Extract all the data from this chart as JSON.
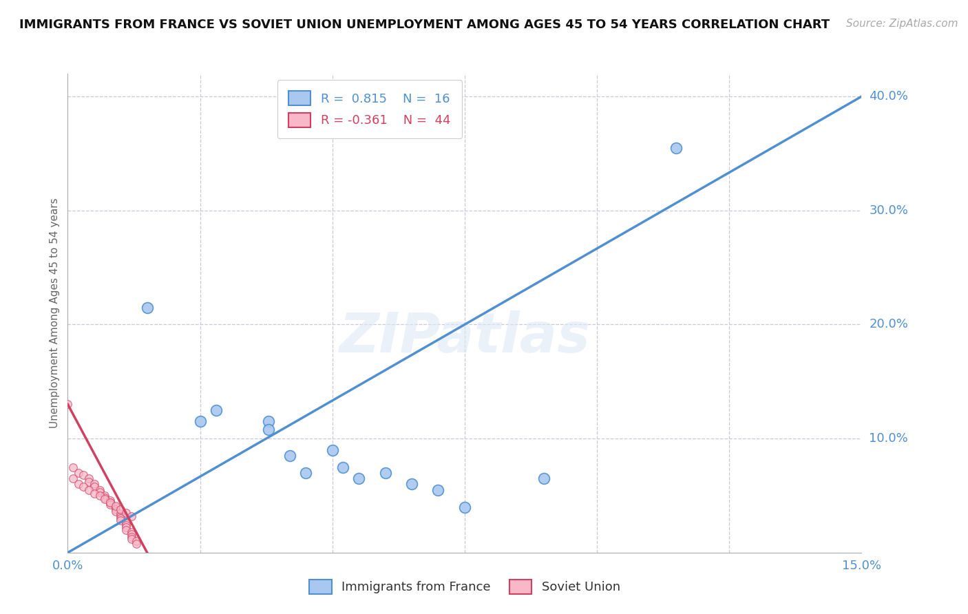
{
  "title": "IMMIGRANTS FROM FRANCE VS SOVIET UNION UNEMPLOYMENT AMONG AGES 45 TO 54 YEARS CORRELATION CHART",
  "source": "Source: ZipAtlas.com",
  "ylabel": "Unemployment Among Ages 45 to 54 years",
  "xlim": [
    0.0,
    0.15
  ],
  "ylim": [
    0.0,
    0.42
  ],
  "france_R": 0.815,
  "france_N": 16,
  "soviet_R": -0.361,
  "soviet_N": 44,
  "france_color": "#a8c8f0",
  "soviet_color": "#f8b8c8",
  "france_line_color": "#5090d0",
  "soviet_line_color": "#d04060",
  "watermark_text": "ZIPatlas",
  "background_color": "#ffffff",
  "grid_color": "#c8c8d8",
  "axis_label_color": "#5090d0",
  "france_points": [
    [
      0.015,
      0.215
    ],
    [
      0.025,
      0.115
    ],
    [
      0.028,
      0.125
    ],
    [
      0.038,
      0.115
    ],
    [
      0.038,
      0.108
    ],
    [
      0.042,
      0.085
    ],
    [
      0.05,
      0.09
    ],
    [
      0.045,
      0.07
    ],
    [
      0.052,
      0.075
    ],
    [
      0.055,
      0.065
    ],
    [
      0.06,
      0.07
    ],
    [
      0.065,
      0.06
    ],
    [
      0.07,
      0.055
    ],
    [
      0.075,
      0.04
    ],
    [
      0.09,
      0.065
    ],
    [
      0.115,
      0.355
    ]
  ],
  "soviet_points": [
    [
      0.0,
      0.13
    ],
    [
      0.001,
      0.075
    ],
    [
      0.002,
      0.07
    ],
    [
      0.003,
      0.068
    ],
    [
      0.004,
      0.065
    ],
    [
      0.004,
      0.062
    ],
    [
      0.005,
      0.06
    ],
    [
      0.005,
      0.058
    ],
    [
      0.006,
      0.055
    ],
    [
      0.006,
      0.053
    ],
    [
      0.007,
      0.05
    ],
    [
      0.007,
      0.048
    ],
    [
      0.008,
      0.046
    ],
    [
      0.008,
      0.044
    ],
    [
      0.008,
      0.042
    ],
    [
      0.009,
      0.04
    ],
    [
      0.009,
      0.038
    ],
    [
      0.009,
      0.036
    ],
    [
      0.01,
      0.034
    ],
    [
      0.01,
      0.032
    ],
    [
      0.01,
      0.03
    ],
    [
      0.01,
      0.028
    ],
    [
      0.011,
      0.026
    ],
    [
      0.011,
      0.024
    ],
    [
      0.011,
      0.022
    ],
    [
      0.011,
      0.02
    ],
    [
      0.012,
      0.018
    ],
    [
      0.012,
      0.016
    ],
    [
      0.012,
      0.014
    ],
    [
      0.012,
      0.012
    ],
    [
      0.013,
      0.01
    ],
    [
      0.013,
      0.008
    ],
    [
      0.001,
      0.065
    ],
    [
      0.002,
      0.06
    ],
    [
      0.003,
      0.058
    ],
    [
      0.004,
      0.055
    ],
    [
      0.005,
      0.052
    ],
    [
      0.006,
      0.05
    ],
    [
      0.007,
      0.047
    ],
    [
      0.008,
      0.044
    ],
    [
      0.009,
      0.041
    ],
    [
      0.01,
      0.038
    ],
    [
      0.011,
      0.035
    ],
    [
      0.012,
      0.032
    ]
  ],
  "france_trend": [
    0.0,
    0.15,
    0.0,
    0.4
  ],
  "soviet_trend_x": [
    0.0,
    0.015
  ],
  "soviet_trend_y": [
    0.13,
    0.0
  ]
}
